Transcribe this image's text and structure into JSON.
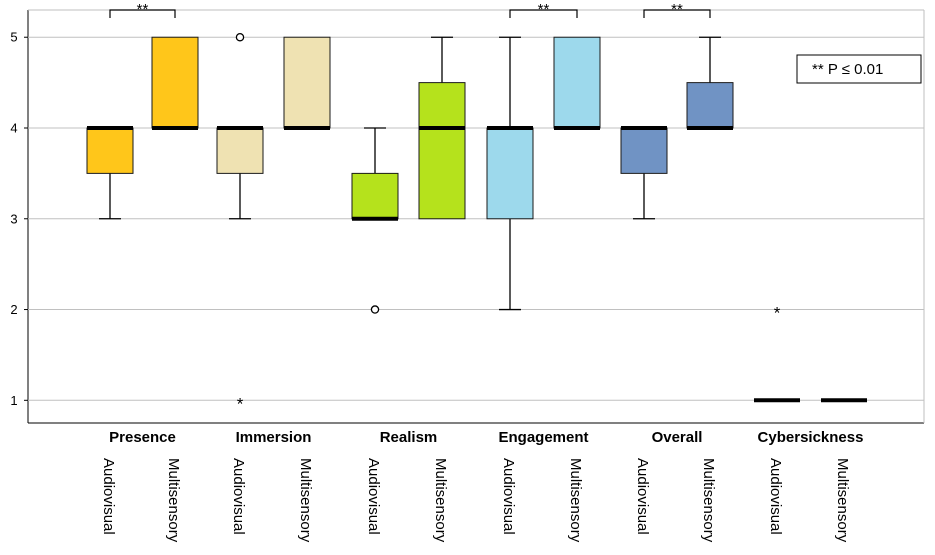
{
  "chart_data": {
    "type": "boxplot",
    "title": "",
    "xlabel": "",
    "ylabel": "",
    "ylim": [
      0.75,
      5.3
    ],
    "yticks": [
      1,
      2,
      3,
      4,
      5
    ],
    "grid": true,
    "legend": {
      "text": "**   P ≤ 0.01",
      "placement": "top-right"
    },
    "groups": [
      {
        "name": "Presence",
        "boxes": [
          {
            "label": "Audiovisual",
            "color": "#FFC61A",
            "min": 3,
            "q1": 3.5,
            "median": 4,
            "q3": 4,
            "max": 4,
            "outliers": [],
            "extremes": []
          },
          {
            "label": "Multisensory",
            "color": "#FFC61A",
            "min": 4,
            "q1": 4,
            "median": 4,
            "q3": 5,
            "max": 5,
            "outliers": [],
            "extremes": []
          }
        ],
        "significance": "**"
      },
      {
        "name": "Immersion",
        "boxes": [
          {
            "label": "Audiovisual",
            "color": "#EFE2B2",
            "min": 3,
            "q1": 3.5,
            "median": 4,
            "q3": 4,
            "max": 4,
            "outliers": [
              5
            ],
            "extremes": [
              1
            ]
          },
          {
            "label": "Multisensory",
            "color": "#EFE2B2",
            "min": 4,
            "q1": 4,
            "median": 4,
            "q3": 5,
            "max": 5,
            "outliers": [],
            "extremes": []
          }
        ],
        "significance": ""
      },
      {
        "name": "Realism",
        "boxes": [
          {
            "label": "Audiovisual",
            "color": "#B5E21C",
            "min": 3,
            "q1": 3,
            "median": 3,
            "q3": 3.5,
            "max": 4,
            "outliers": [
              2
            ],
            "extremes": []
          },
          {
            "label": "Multisensory",
            "color": "#B5E21C",
            "min": 3,
            "q1": 3,
            "median": 4,
            "q3": 4.5,
            "max": 5,
            "outliers": [],
            "extremes": []
          }
        ],
        "significance": ""
      },
      {
        "name": "Engagement",
        "boxes": [
          {
            "label": "Audiovisual",
            "color": "#9DD9EC",
            "min": 2,
            "q1": 3,
            "median": 4,
            "q3": 4,
            "max": 5,
            "outliers": [],
            "extremes": []
          },
          {
            "label": "Multisensory",
            "color": "#9DD9EC",
            "min": 4,
            "q1": 4,
            "median": 4,
            "q3": 5,
            "max": 5,
            "outliers": [],
            "extremes": []
          }
        ],
        "significance": "**"
      },
      {
        "name": "Overall",
        "boxes": [
          {
            "label": "Audiovisual",
            "color": "#7093C4",
            "min": 3,
            "q1": 3.5,
            "median": 4,
            "q3": 4,
            "max": 4,
            "outliers": [],
            "extremes": []
          },
          {
            "label": "Multisensory",
            "color": "#7093C4",
            "min": 4,
            "q1": 4,
            "median": 4,
            "q3": 4.5,
            "max": 5,
            "outliers": [],
            "extremes": []
          }
        ],
        "significance": "**"
      },
      {
        "name": "Cybersickness",
        "boxes": [
          {
            "label": "Audiovisual",
            "color": "#000000",
            "min": 1,
            "q1": 1,
            "median": 1,
            "q3": 1,
            "max": 1,
            "outliers": [],
            "extremes": [
              2
            ]
          },
          {
            "label": "Multisensory",
            "color": "#000000",
            "min": 1,
            "q1": 1,
            "median": 1,
            "q3": 1,
            "max": 1,
            "outliers": [],
            "extremes": []
          }
        ],
        "significance": ""
      }
    ]
  }
}
